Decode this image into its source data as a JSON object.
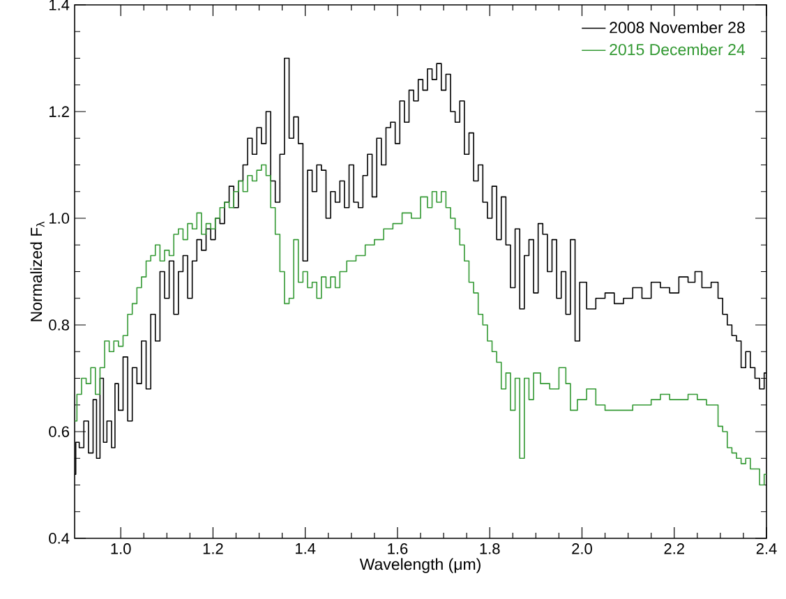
{
  "chart_data": {
    "type": "step",
    "xlabel": "Wavelength (μm)",
    "ylabel": "Normalized F$_{λ}$",
    "xlim": [
      0.9,
      2.4
    ],
    "ylim": [
      0.4,
      1.4
    ],
    "xticks": [
      {
        "value": 1,
        "label": "1.0"
      },
      1.2,
      1.4,
      1.6,
      1.8,
      {
        "value": 2,
        "label": "2.0"
      },
      2.2,
      2.4
    ],
    "yticks": [
      0.4,
      0.6,
      0.8,
      {
        "value": 1,
        "label": "1.0"
      },
      1.2,
      1.4
    ],
    "legend": "top right",
    "series": [
      {
        "name": "2008 November 28",
        "color": "#000000",
        "x": [
          0.9,
          0.905,
          0.915,
          0.925,
          0.935,
          0.945,
          0.95,
          0.96,
          0.965,
          0.975,
          0.985,
          0.99,
          1.0,
          1.01,
          1.02,
          1.03,
          1.04,
          1.05,
          1.06,
          1.07,
          1.08,
          1.09,
          1.1,
          1.11,
          1.12,
          1.13,
          1.14,
          1.15,
          1.16,
          1.17,
          1.18,
          1.19,
          1.2,
          1.21,
          1.22,
          1.23,
          1.24,
          1.25,
          1.26,
          1.27,
          1.28,
          1.29,
          1.3,
          1.31,
          1.32,
          1.33,
          1.34,
          1.35,
          1.36,
          1.37,
          1.38,
          1.39,
          1.4,
          1.41,
          1.42,
          1.43,
          1.44,
          1.45,
          1.46,
          1.47,
          1.48,
          1.49,
          1.5,
          1.51,
          1.52,
          1.53,
          1.54,
          1.55,
          1.56,
          1.57,
          1.58,
          1.59,
          1.6,
          1.61,
          1.62,
          1.63,
          1.64,
          1.65,
          1.66,
          1.67,
          1.68,
          1.69,
          1.7,
          1.71,
          1.72,
          1.73,
          1.74,
          1.75,
          1.76,
          1.77,
          1.78,
          1.79,
          1.8,
          1.81,
          1.82,
          1.83,
          1.84,
          1.85,
          1.86,
          1.87,
          1.88,
          1.89,
          1.9,
          1.91,
          1.92,
          1.93,
          1.94,
          1.95,
          1.96,
          1.97,
          1.98,
          1.99,
          2.0,
          2.02,
          2.04,
          2.06,
          2.08,
          2.1,
          2.12,
          2.14,
          2.16,
          2.18,
          2.2,
          2.22,
          2.24,
          2.25,
          2.27,
          2.29,
          2.3,
          2.31,
          2.32,
          2.33,
          2.34,
          2.35,
          2.36,
          2.37,
          2.38,
          2.39,
          2.4
        ],
        "values": [
          0.52,
          0.58,
          0.57,
          0.62,
          0.56,
          0.66,
          0.55,
          0.7,
          0.58,
          0.62,
          0.57,
          0.69,
          0.64,
          0.74,
          0.62,
          0.72,
          0.69,
          0.77,
          0.68,
          0.82,
          0.77,
          0.9,
          0.85,
          0.92,
          0.82,
          0.9,
          0.93,
          0.85,
          0.92,
          0.96,
          0.94,
          0.98,
          0.96,
          1.0,
          0.99,
          1.03,
          1.06,
          1.02,
          1.07,
          1.1,
          1.15,
          1.12,
          1.17,
          1.14,
          1.2,
          1.07,
          1.03,
          1.12,
          1.3,
          1.15,
          1.19,
          1.14,
          0.92,
          1.09,
          1.05,
          1.1,
          1.09,
          1.0,
          1.05,
          1.03,
          1.07,
          1.02,
          1.1,
          1.03,
          1.02,
          1.08,
          1.12,
          1.04,
          1.15,
          1.1,
          1.17,
          1.18,
          1.14,
          1.22,
          1.18,
          1.24,
          1.22,
          1.26,
          1.24,
          1.28,
          1.26,
          1.29,
          1.24,
          1.27,
          1.2,
          1.18,
          1.22,
          1.12,
          1.16,
          1.07,
          1.1,
          1.03,
          1.0,
          1.06,
          0.96,
          1.04,
          0.95,
          0.87,
          0.98,
          0.83,
          0.93,
          0.96,
          0.86,
          0.99,
          0.97,
          0.9,
          0.96,
          0.85,
          0.9,
          0.82,
          0.96,
          0.77,
          0.88,
          0.83,
          0.85,
          0.86,
          0.84,
          0.85,
          0.87,
          0.85,
          0.88,
          0.87,
          0.86,
          0.89,
          0.88,
          0.9,
          0.87,
          0.88,
          0.85,
          0.82,
          0.8,
          0.78,
          0.77,
          0.72,
          0.75,
          0.72,
          0.7,
          0.68,
          0.71
        ]
      },
      {
        "name": "2015 December 24",
        "color": "#339933",
        "x": [
          0.9,
          0.91,
          0.92,
          0.93,
          0.94,
          0.95,
          0.96,
          0.97,
          0.98,
          0.99,
          1.0,
          1.01,
          1.02,
          1.03,
          1.04,
          1.05,
          1.06,
          1.07,
          1.08,
          1.09,
          1.1,
          1.11,
          1.12,
          1.13,
          1.14,
          1.15,
          1.16,
          1.17,
          1.18,
          1.19,
          1.2,
          1.21,
          1.22,
          1.23,
          1.24,
          1.25,
          1.26,
          1.27,
          1.28,
          1.29,
          1.3,
          1.31,
          1.32,
          1.33,
          1.34,
          1.35,
          1.36,
          1.37,
          1.38,
          1.39,
          1.4,
          1.41,
          1.42,
          1.43,
          1.44,
          1.45,
          1.46,
          1.47,
          1.48,
          1.5,
          1.52,
          1.54,
          1.56,
          1.58,
          1.6,
          1.62,
          1.64,
          1.66,
          1.67,
          1.68,
          1.69,
          1.7,
          1.71,
          1.72,
          1.73,
          1.74,
          1.75,
          1.76,
          1.77,
          1.78,
          1.79,
          1.8,
          1.81,
          1.82,
          1.83,
          1.84,
          1.85,
          1.86,
          1.87,
          1.88,
          1.89,
          1.9,
          1.92,
          1.94,
          1.96,
          1.97,
          1.98,
          2.0,
          2.02,
          2.04,
          2.06,
          2.08,
          2.1,
          2.12,
          2.14,
          2.16,
          2.18,
          2.2,
          2.22,
          2.24,
          2.26,
          2.28,
          2.29,
          2.3,
          2.31,
          2.32,
          2.33,
          2.34,
          2.35,
          2.36,
          2.37,
          2.38,
          2.39,
          2.4
        ],
        "values": [
          0.62,
          0.67,
          0.7,
          0.69,
          0.72,
          0.67,
          0.72,
          0.77,
          0.75,
          0.77,
          0.76,
          0.78,
          0.82,
          0.84,
          0.87,
          0.89,
          0.92,
          0.93,
          0.95,
          0.92,
          0.94,
          0.93,
          0.97,
          0.98,
          0.96,
          0.99,
          0.98,
          1.01,
          0.97,
          0.99,
          0.98,
          1.0,
          1.02,
          1.03,
          1.02,
          1.05,
          1.07,
          1.05,
          1.08,
          1.07,
          1.09,
          1.1,
          1.08,
          1.02,
          0.97,
          0.9,
          0.84,
          0.85,
          0.96,
          0.88,
          0.9,
          0.87,
          0.88,
          0.85,
          0.89,
          0.87,
          0.89,
          0.87,
          0.9,
          0.92,
          0.93,
          0.95,
          0.96,
          0.98,
          0.99,
          1.01,
          1.0,
          1.04,
          1.02,
          1.05,
          1.03,
          1.05,
          1.02,
          1.0,
          0.98,
          0.95,
          0.92,
          0.88,
          0.86,
          0.82,
          0.8,
          0.77,
          0.75,
          0.73,
          0.68,
          0.71,
          0.64,
          0.7,
          0.55,
          0.7,
          0.66,
          0.71,
          0.69,
          0.68,
          0.72,
          0.69,
          0.64,
          0.66,
          0.68,
          0.65,
          0.64,
          0.64,
          0.64,
          0.65,
          0.65,
          0.66,
          0.67,
          0.66,
          0.66,
          0.67,
          0.66,
          0.65,
          0.65,
          0.61,
          0.6,
          0.57,
          0.56,
          0.55,
          0.54,
          0.55,
          0.53,
          0.53,
          0.5,
          0.52
        ]
      }
    ]
  }
}
